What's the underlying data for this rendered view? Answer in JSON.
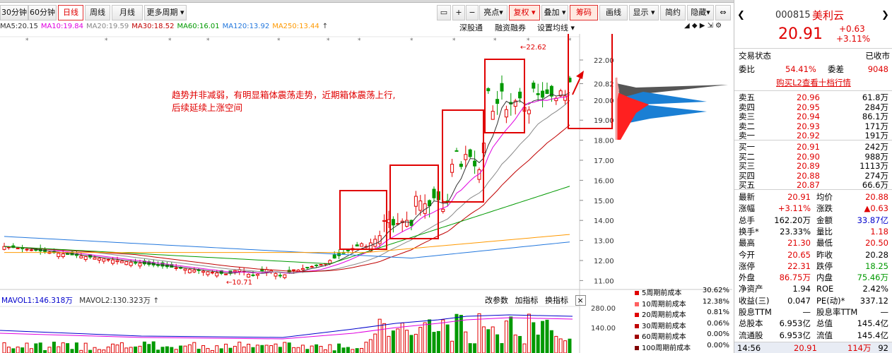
{
  "toolbar": {
    "btn_30m": "30分钟",
    "btn_60m": "60分钟",
    "btn_daily": "日线",
    "btn_weekly": "周线",
    "btn_monthly": "月线",
    "btn_more": "更多周期 ▾",
    "btn_highlight": "亮点▾",
    "btn_adjust": "复权 ▾",
    "btn_overlay": "叠加 ▾",
    "btn_chips": "筹码",
    "btn_draw": "画线",
    "btn_display": "显示 ▾",
    "btn_simple": "简约",
    "btn_hide": "隐藏▾"
  },
  "ma": {
    "ma5": "MA5:20.15",
    "ma10": "MA10:19.84",
    "ma20": "MA20:19.59",
    "ma30": "MA30:18.52",
    "ma60": "MA60:16.01",
    "ma120": "MA120:13.92",
    "ma250": "MA250:13.44",
    "arrow": "↑"
  },
  "subtools": {
    "shen": "深股通",
    "margin": "融资融券",
    "set_ma": "设置均线 ▾"
  },
  "annotation": {
    "line1": "趋势并非减弱，有明显箱体震荡走势，近期箱体震荡上行,",
    "line2": "后续延续上涨空间"
  },
  "price_labels": {
    "high": "22.62",
    "low": "10.71"
  },
  "y_axis": [
    "22.00",
    "20.82",
    "20.00",
    "19.00",
    "18.00",
    "17.00",
    "16.00",
    "15.00",
    "14.00",
    "13.00",
    "12.00",
    "11.00"
  ],
  "volume": {
    "mavol1": "MAVOL1:146.318万",
    "mavol2": "MAVOL2:130.323万",
    "arrow": "↑",
    "params": "改参数",
    "add": "加指标",
    "swap": "换指标",
    "close": "×",
    "y_top": "280.00",
    "y_mid": "140.00"
  },
  "cost_legend": [
    {
      "label": "5周期前成本",
      "value": "30.62%",
      "color": "#e00000"
    },
    {
      "label": "10周期前成本",
      "value": "12.38%",
      "color": "#ff6060"
    },
    {
      "label": "20周期前成本",
      "value": "0.81%",
      "color": "#e00000"
    },
    {
      "label": "30周期前成本",
      "value": "0.06%",
      "color": "#c00000"
    },
    {
      "label": "60周期前成本",
      "value": "0.00%",
      "color": "#a00000"
    },
    {
      "label": "100周期前成本",
      "value": "0.00%",
      "color": "#800000"
    }
  ],
  "quote": {
    "code": "000815",
    "name": "美利云",
    "price": "20.91",
    "change": "+0.63",
    "pct": "+3.11%",
    "status_label": "交易状态",
    "status_value": "已收市",
    "weibi_label": "委比",
    "weibi_value": "54.41%",
    "weicha_label": "委差",
    "weicha_value": "9048",
    "l2_link": "购买L2查看十档行情",
    "asks": [
      {
        "label": "卖五",
        "price": "20.96",
        "vol": "61.8万"
      },
      {
        "label": "卖四",
        "price": "20.95",
        "vol": "284万"
      },
      {
        "label": "卖三",
        "price": "20.94",
        "vol": "86.1万"
      },
      {
        "label": "卖二",
        "price": "20.93",
        "vol": "171万"
      },
      {
        "label": "卖一",
        "price": "20.92",
        "vol": "191万"
      }
    ],
    "bids": [
      {
        "label": "买一",
        "price": "20.91",
        "vol": "242万"
      },
      {
        "label": "买二",
        "price": "20.90",
        "vol": "988万"
      },
      {
        "label": "买三",
        "price": "20.89",
        "vol": "1113万"
      },
      {
        "label": "买四",
        "price": "20.88",
        "vol": "274万"
      },
      {
        "label": "买五",
        "price": "20.87",
        "vol": "66.6万"
      }
    ],
    "stats": [
      {
        "l1": "最新",
        "v1": "20.91",
        "c1": "r",
        "l2": "均价",
        "v2": "20.88",
        "c2": "r"
      },
      {
        "l1": "涨幅",
        "v1": "+3.11%",
        "c1": "r",
        "l2": "涨跌",
        "v2": "▲0.63",
        "c2": "r"
      },
      {
        "l1": "总手",
        "v1": "162.20万",
        "c1": "k",
        "l2": "金额",
        "v2": "33.87亿",
        "c2": "b"
      },
      {
        "l1": "换手*",
        "v1": "23.33%",
        "c1": "k",
        "l2": "量比",
        "v2": "1.18",
        "c2": "r"
      },
      {
        "l1": "最高",
        "v1": "21.30",
        "c1": "r",
        "l2": "最低",
        "v2": "20.50",
        "c2": "r"
      },
      {
        "l1": "今开",
        "v1": "20.65",
        "c1": "r",
        "l2": "昨收",
        "v2": "20.28",
        "c2": "k"
      },
      {
        "l1": "涨停",
        "v1": "22.31",
        "c1": "r",
        "l2": "跌停",
        "v2": "18.25",
        "c2": "g"
      },
      {
        "l1": "外盘",
        "v1": "86.75万",
        "c1": "r",
        "l2": "内盘",
        "v2": "75.46万",
        "c2": "g"
      },
      {
        "l1": "净资产",
        "v1": "1.94",
        "c1": "k",
        "l2": "ROE",
        "v2": "2.42%",
        "c2": "k"
      },
      {
        "l1": "收益(三)",
        "v1": "0.047",
        "c1": "k",
        "l2": "PE(动)*",
        "v2": "337.12",
        "c2": "k"
      },
      {
        "l1": "股息TTM",
        "v1": "—",
        "c1": "k",
        "l2": "股息率TTM",
        "v2": "—",
        "c2": "k"
      },
      {
        "l1": "总股本",
        "v1": "6.953亿",
        "c1": "k",
        "l2": "总值",
        "v2": "145.4亿",
        "c2": "k"
      },
      {
        "l1": "流通股",
        "v1": "6.953亿",
        "c1": "k",
        "l2": "流值",
        "v2": "145.4亿",
        "c2": "k"
      }
    ],
    "tick": {
      "time": "14:56",
      "price": "20.91",
      "vol": "114万",
      "num": "92"
    }
  },
  "colors": {
    "up": "#e00000",
    "down": "#009900",
    "box": "#e00000",
    "ma5": "#333333",
    "ma10": "#e000e0",
    "ma20": "#888888",
    "ma30": "#c00000",
    "ma60": "#009900",
    "ma120": "#2277dd",
    "ma250": "#ff9900"
  }
}
